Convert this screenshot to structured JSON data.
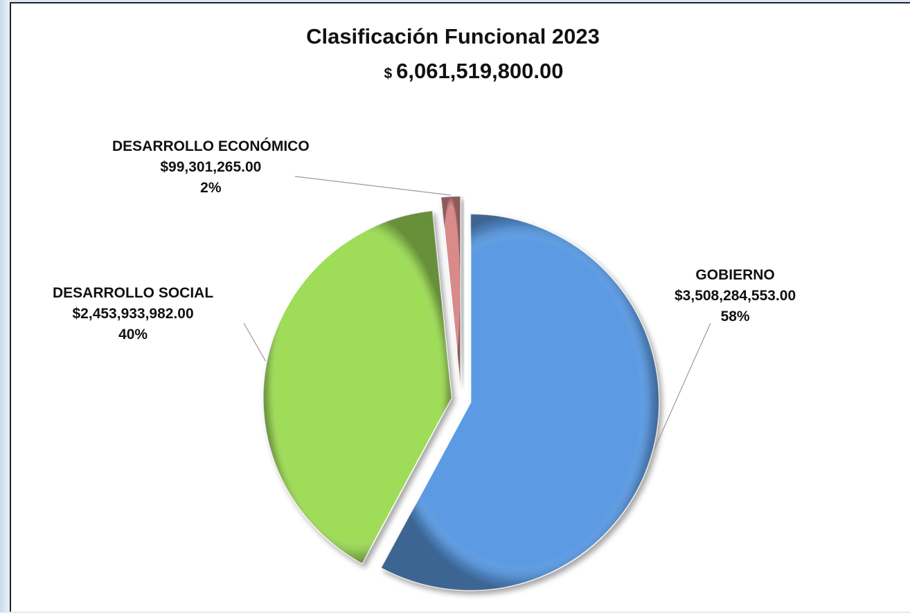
{
  "chart_data": {
    "type": "pie",
    "title": "Clasificación Funcional 2023",
    "subtitle_currency": "$",
    "subtitle_value": "6,061,519,800.00",
    "slices": [
      {
        "name": "GOBIERNO",
        "amount": "$3,508,284,553.00",
        "percent_label": "58%",
        "value": 3508284553.0,
        "color": "#5b9be3"
      },
      {
        "name": "DESARROLLO SOCIAL",
        "amount": "$2,453,933,982.00",
        "percent_label": "40%",
        "value": 2453933982.0,
        "color": "#9fdc59"
      },
      {
        "name": "DESARROLLO ECONÓMICO",
        "amount": "$99,301,265.00",
        "percent_label": "2%",
        "value": 99301265.0,
        "color": "#d98a8a"
      }
    ],
    "legend": "none",
    "exploded": true
  }
}
